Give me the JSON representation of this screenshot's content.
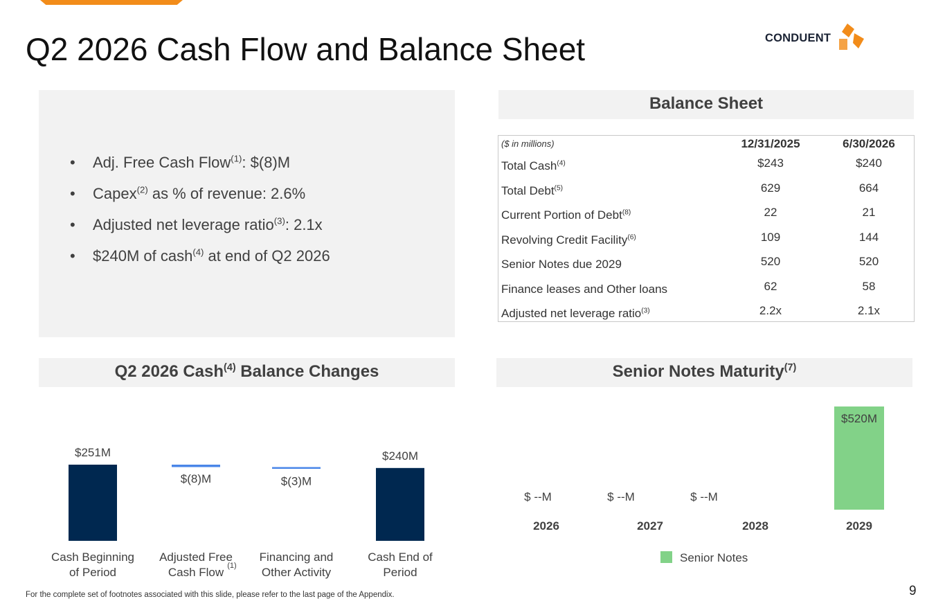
{
  "slide": {
    "title": "Q2 2026 Cash Flow and Balance Sheet",
    "logo_text": "CONDUENT",
    "page_number": "9",
    "footnote": "For the complete set of footnotes associated with this slide, please refer to the last page of the Appendix."
  },
  "colors": {
    "accent_orange": "#f28c1a",
    "navy_bar": "#002850",
    "delta_line": "#4a86e8",
    "green_bar": "#82d288"
  },
  "bullets": [
    {
      "pre": "Adj. Free Cash Flow",
      "sup": "(1)",
      "post": ": $(8)M"
    },
    {
      "pre": "Capex",
      "sup": "(2)",
      "post": " as % of revenue: 2.6%"
    },
    {
      "pre": "Adjusted net leverage ratio",
      "sup": "(3)",
      "post": ": 2.1x"
    },
    {
      "pre": "$240M of cash",
      "sup": "(4)",
      "post": " at end of Q2 2026"
    }
  ],
  "balance_sheet": {
    "header": "Balance Sheet",
    "units_label": "($ in millions)",
    "columns": [
      "12/31/2025",
      "6/30/2026"
    ],
    "rows": [
      {
        "label": "Total Cash",
        "sup": "(4)",
        "values": [
          "$243",
          "$240"
        ]
      },
      {
        "label": "Total Debt",
        "sup": "(5)",
        "values": [
          "629",
          "664"
        ]
      },
      {
        "label": "Current Portion of Debt",
        "sup": "(8)",
        "values": [
          "22",
          "21"
        ]
      },
      {
        "label": "Revolving Credit Facility",
        "sup": "(6)",
        "values": [
          "109",
          "144"
        ]
      },
      {
        "label": "Senior Notes due 2029",
        "sup": "",
        "values": [
          "520",
          "520"
        ]
      },
      {
        "label": "Finance leases and Other loans",
        "sup": "",
        "values": [
          "62",
          "58"
        ]
      },
      {
        "label": "Adjusted net leverage ratio",
        "sup": "(3)",
        "values": [
          "2.2x",
          "2.1x"
        ]
      }
    ]
  },
  "cash_header": {
    "pre": "Q2 2026 Cash",
    "sup": "(4)",
    "post": " Balance Changes"
  },
  "notes_header": {
    "pre": "Senior Notes Maturity",
    "sup": "(7)"
  },
  "chart_data": [
    {
      "type": "bar",
      "subtype": "waterfall",
      "categories": [
        "Cash Beginning of  Period",
        "Adjusted Free Cash Flow",
        "Financing and Other Activity",
        "Cash End of Period"
      ],
      "category_lines": [
        [
          "Cash Beginning",
          "of  Period"
        ],
        [
          "Adjusted Free",
          "Cash Flow"
        ],
        [
          "Financing and",
          "Other Activity"
        ],
        [
          "Cash End of",
          "Period"
        ]
      ],
      "category_sup": [
        "",
        "(1)",
        "",
        ""
      ],
      "values": [
        251,
        -8,
        -3,
        240
      ],
      "data_labels": [
        "$251M",
        "$(8)M",
        "$(3)M",
        "$240M"
      ],
      "unit": "$M"
    },
    {
      "type": "bar",
      "categories": [
        "2026",
        "2027",
        "2028",
        "2029"
      ],
      "series": [
        {
          "name": "Senior Notes",
          "values": [
            0,
            0,
            0,
            520
          ]
        }
      ],
      "data_labels": [
        "$ --M",
        "$ --M",
        "$ --M",
        "$520M"
      ],
      "unit": "$M"
    }
  ]
}
